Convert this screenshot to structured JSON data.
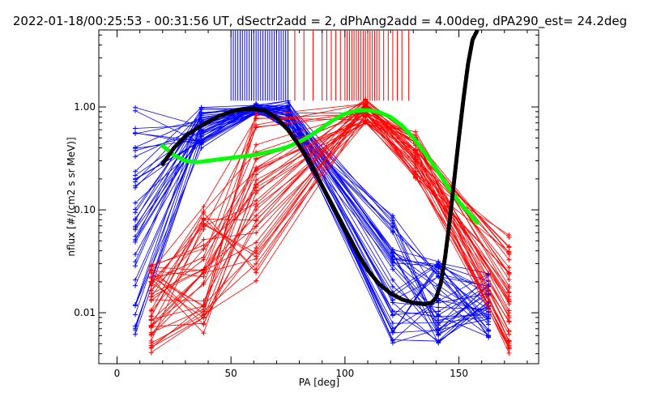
{
  "chart_data": {
    "type": "line",
    "title": "2022-01-18/00:25:53 - 00:31:56 UT, dSectr2add = 2, dPhAng2add = 4.00deg, dPA290_est=  24.2deg",
    "xlabel": "PA [deg]",
    "ylabel": "nflux [#/(cm2 s sr MeV)]",
    "xlim": [
      -8,
      185
    ],
    "ylim": [
      0.0032,
      5.6
    ],
    "yscale": "log",
    "grid": false,
    "x_ticks": [
      0,
      50,
      100,
      150
    ],
    "x_tick_labels": [
      "0",
      "50",
      "100",
      "150"
    ],
    "y_ticks": [
      0.01,
      0.1,
      1.0
    ],
    "y_tick_labels": [
      "0.01",
      "0.10",
      "1.00"
    ],
    "colors": {
      "blue": "#0000ff",
      "red": "#ff0000",
      "black": "#000000",
      "green": "#00ff00"
    },
    "pa_bins": {
      "blue": [
        8,
        37,
        61,
        75,
        121,
        141,
        163
      ],
      "red": [
        15,
        38,
        61,
        109,
        131,
        172
      ]
    },
    "fit_black": {
      "name": "",
      "x": [
        20,
        25,
        30,
        35,
        40,
        45,
        50,
        55,
        60,
        65,
        70,
        75,
        80,
        85,
        90,
        95,
        100,
        105,
        110,
        115,
        120,
        125,
        130,
        135,
        138,
        140,
        142,
        144,
        146,
        148,
        150,
        152,
        154,
        156,
        158
      ],
      "y": [
        0.28,
        0.4,
        0.52,
        0.62,
        0.72,
        0.82,
        0.9,
        0.95,
        0.96,
        0.92,
        0.78,
        0.6,
        0.42,
        0.28,
        0.17,
        0.105,
        0.064,
        0.04,
        0.026,
        0.019,
        0.0155,
        0.0135,
        0.0125,
        0.0122,
        0.0125,
        0.014,
        0.019,
        0.035,
        0.08,
        0.2,
        0.5,
        1.2,
        2.6,
        4.5,
        5.5
      ]
    },
    "fit_green": {
      "name": "",
      "x": [
        20,
        25,
        30,
        35,
        40,
        45,
        50,
        55,
        60,
        65,
        70,
        75,
        80,
        85,
        90,
        95,
        100,
        105,
        110,
        115,
        120,
        125,
        130,
        135,
        140,
        145,
        150,
        155,
        158
      ],
      "y": [
        0.42,
        0.34,
        0.3,
        0.29,
        0.3,
        0.31,
        0.32,
        0.33,
        0.34,
        0.36,
        0.38,
        0.41,
        0.46,
        0.53,
        0.63,
        0.75,
        0.86,
        0.92,
        0.93,
        0.89,
        0.8,
        0.66,
        0.5,
        0.36,
        0.25,
        0.17,
        0.12,
        0.09,
        0.075
      ]
    },
    "ticks_blue_x": [
      50,
      51,
      52,
      53,
      54,
      55,
      56,
      57,
      58,
      59,
      60,
      61,
      62,
      63,
      64,
      65,
      66,
      67,
      68,
      69,
      70,
      71,
      72,
      73,
      74,
      75
    ],
    "ticks_red_x": [
      78,
      82,
      86,
      90,
      92,
      94,
      96,
      98,
      100,
      101,
      102,
      103,
      104,
      105,
      106,
      107,
      108,
      109,
      110,
      111,
      112,
      113,
      114,
      115,
      117,
      119,
      121,
      123,
      125,
      128
    ]
  }
}
